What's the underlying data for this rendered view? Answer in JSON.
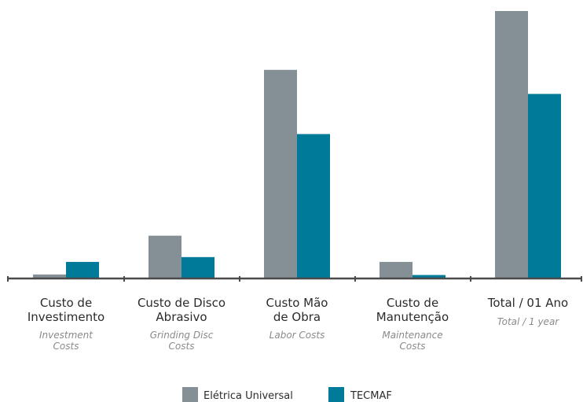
{
  "chart_data": {
    "type": "bar",
    "categories": [
      {
        "main": [
          "Custo de",
          "Investimento"
        ],
        "sub": [
          "Investment",
          "Costs"
        ]
      },
      {
        "main": [
          "Custo de Disco",
          "Abrasivo"
        ],
        "sub": [
          "Grinding Disc",
          "Costs"
        ]
      },
      {
        "main": [
          "Custo Mão",
          "de Obra"
        ],
        "sub": [
          "Labor Costs"
        ]
      },
      {
        "main": [
          "Custo de",
          "Manutenção"
        ],
        "sub": [
          "Maintenance",
          "Costs"
        ]
      },
      {
        "main": [
          "Total / 01 Ano"
        ],
        "sub": [
          "Total / 1 year"
        ]
      }
    ],
    "series": [
      {
        "name": "Elétrica Universal",
        "color": "#858f96",
        "values": [
          1.5,
          16,
          78,
          6.2,
          100
        ]
      },
      {
        "name": "TECMAF",
        "color": "#007a99",
        "values": [
          6.2,
          8,
          54,
          1.3,
          69
        ]
      }
    ],
    "ylim": [
      0,
      100
    ],
    "axis_color": "#4a4a4a",
    "grid": false,
    "legend_position": "bottom-center"
  }
}
